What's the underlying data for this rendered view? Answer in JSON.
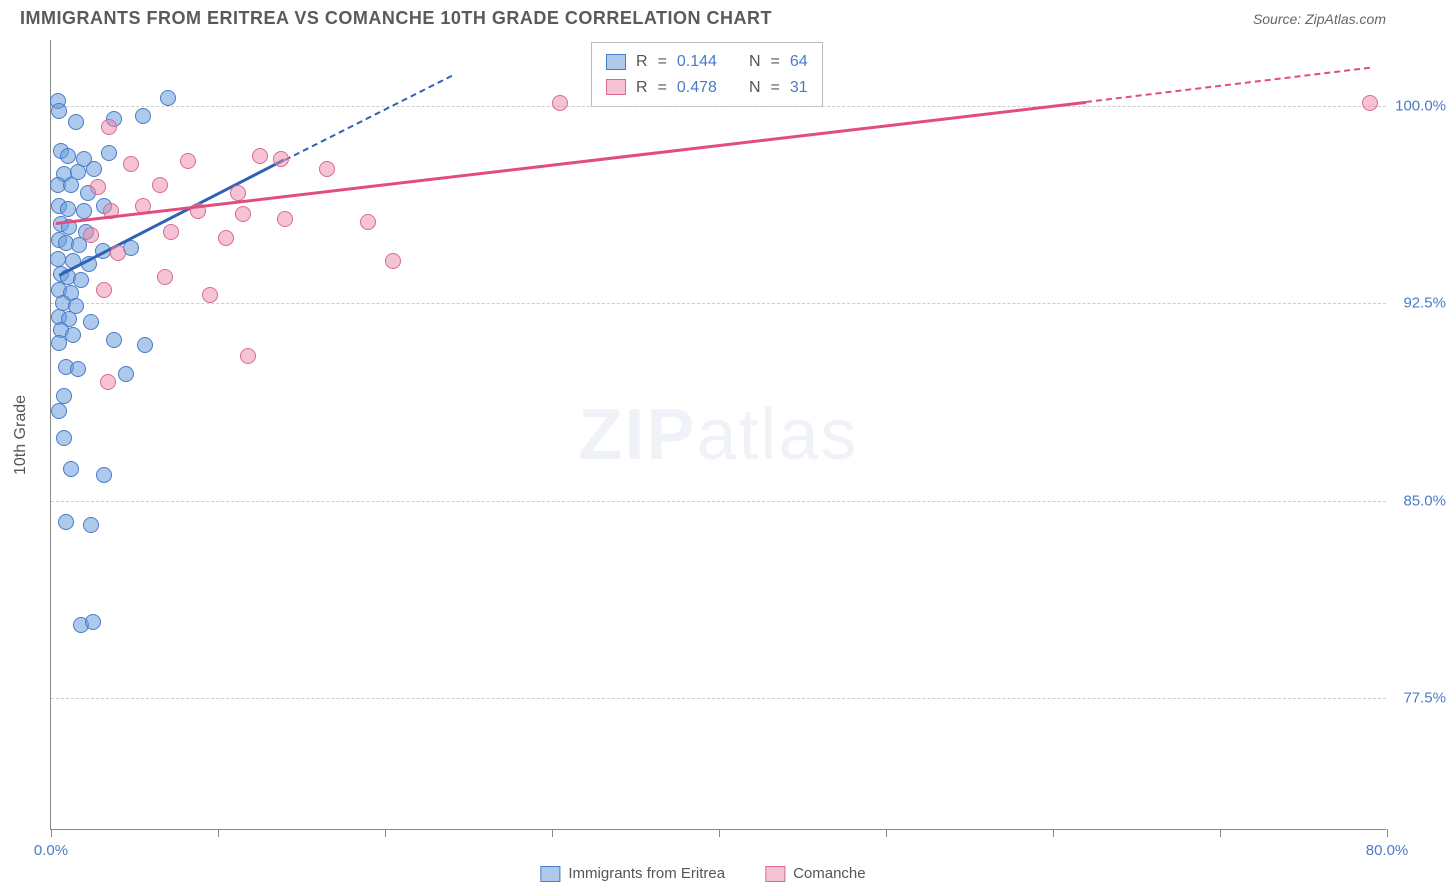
{
  "header": {
    "title": "IMMIGRANTS FROM ERITREA VS COMANCHE 10TH GRADE CORRELATION CHART",
    "source_prefix": "Source: ",
    "source": "ZipAtlas.com"
  },
  "watermark": {
    "zip": "ZIP",
    "atlas": "atlas"
  },
  "chart": {
    "type": "scatter",
    "y_axis_label": "10th Grade",
    "background_color": "#ffffff",
    "grid_color": "#cccccc",
    "axis_color": "#888888",
    "tick_label_color": "#4a7bc8",
    "x_range": [
      0,
      80
    ],
    "y_range": [
      72.5,
      102.5
    ],
    "x_ticks": [
      0,
      10,
      20,
      30,
      40,
      50,
      60,
      70,
      80
    ],
    "x_tick_labels": {
      "first": "0.0%",
      "last": "80.0%"
    },
    "y_ticks": [
      77.5,
      85.0,
      92.5,
      100.0
    ],
    "y_tick_labels": [
      "77.5%",
      "85.0%",
      "92.5%",
      "100.0%"
    ],
    "series": [
      {
        "name": "Immigrants from Eritrea",
        "marker_fill": "rgba(106,159,220,0.55)",
        "marker_stroke": "#4a7bc8",
        "line_color": "#2e63b3",
        "r": 0.144,
        "n": 64,
        "trend_solid": {
          "x1": 0.5,
          "y1": 93.6,
          "x2": 14.0,
          "y2": 98.0
        },
        "trend_dash": {
          "x1": 14.0,
          "y1": 98.0,
          "x2": 24.0,
          "y2": 101.2
        },
        "points": [
          [
            0.4,
            100.2
          ],
          [
            0.5,
            99.8
          ],
          [
            7.0,
            100.3
          ],
          [
            1.5,
            99.4
          ],
          [
            5.5,
            99.6
          ],
          [
            3.8,
            99.5
          ],
          [
            0.6,
            98.3
          ],
          [
            1.0,
            98.1
          ],
          [
            2.0,
            98.0
          ],
          [
            3.5,
            98.2
          ],
          [
            0.8,
            97.4
          ],
          [
            1.6,
            97.5
          ],
          [
            2.6,
            97.6
          ],
          [
            0.4,
            97.0
          ],
          [
            1.2,
            97.0
          ],
          [
            2.2,
            96.7
          ],
          [
            0.5,
            96.2
          ],
          [
            1.0,
            96.1
          ],
          [
            2.0,
            96.0
          ],
          [
            3.2,
            96.2
          ],
          [
            0.6,
            95.5
          ],
          [
            1.1,
            95.4
          ],
          [
            2.1,
            95.2
          ],
          [
            0.5,
            94.9
          ],
          [
            0.9,
            94.8
          ],
          [
            1.7,
            94.7
          ],
          [
            3.1,
            94.5
          ],
          [
            4.8,
            94.6
          ],
          [
            0.4,
            94.2
          ],
          [
            1.3,
            94.1
          ],
          [
            2.3,
            94.0
          ],
          [
            0.6,
            93.6
          ],
          [
            1.0,
            93.5
          ],
          [
            1.8,
            93.4
          ],
          [
            0.5,
            93.0
          ],
          [
            1.2,
            92.9
          ],
          [
            0.7,
            92.5
          ],
          [
            1.5,
            92.4
          ],
          [
            0.5,
            92.0
          ],
          [
            1.1,
            91.9
          ],
          [
            2.4,
            91.8
          ],
          [
            0.6,
            91.5
          ],
          [
            1.3,
            91.3
          ],
          [
            0.5,
            91.0
          ],
          [
            3.8,
            91.1
          ],
          [
            5.6,
            90.9
          ],
          [
            0.9,
            90.1
          ],
          [
            1.6,
            90.0
          ],
          [
            4.5,
            89.8
          ],
          [
            0.8,
            89.0
          ],
          [
            0.5,
            88.4
          ],
          [
            0.8,
            87.4
          ],
          [
            1.2,
            86.2
          ],
          [
            3.2,
            86.0
          ],
          [
            0.9,
            84.2
          ],
          [
            2.4,
            84.1
          ],
          [
            1.8,
            80.3
          ],
          [
            2.5,
            80.4
          ]
        ]
      },
      {
        "name": "Comanche",
        "marker_fill": "rgba(236,135,168,0.5)",
        "marker_stroke": "#d86a94",
        "line_color": "#e34d7e",
        "r": 0.478,
        "n": 31,
        "trend_solid": {
          "x1": 0.3,
          "y1": 95.6,
          "x2": 62.0,
          "y2": 100.2
        },
        "trend_dash": {
          "x1": 62.0,
          "y1": 100.2,
          "x2": 79.0,
          "y2": 101.5
        },
        "points": [
          [
            79.0,
            100.1
          ],
          [
            30.5,
            100.1
          ],
          [
            3.5,
            99.2
          ],
          [
            4.8,
            97.8
          ],
          [
            8.2,
            97.9
          ],
          [
            12.5,
            98.1
          ],
          [
            13.8,
            98.0
          ],
          [
            16.5,
            97.6
          ],
          [
            2.8,
            96.9
          ],
          [
            6.5,
            97.0
          ],
          [
            11.2,
            96.7
          ],
          [
            3.6,
            96.0
          ],
          [
            5.5,
            96.2
          ],
          [
            8.8,
            96.0
          ],
          [
            11.5,
            95.9
          ],
          [
            14.0,
            95.7
          ],
          [
            19.0,
            95.6
          ],
          [
            2.4,
            95.1
          ],
          [
            7.2,
            95.2
          ],
          [
            10.5,
            95.0
          ],
          [
            4.0,
            94.4
          ],
          [
            20.5,
            94.1
          ],
          [
            6.8,
            93.5
          ],
          [
            3.2,
            93.0
          ],
          [
            9.5,
            92.8
          ],
          [
            11.8,
            90.5
          ],
          [
            3.4,
            89.5
          ]
        ]
      }
    ],
    "legend": {
      "stats_rows": [
        {
          "swatch_fill": "rgba(106,159,220,0.55)",
          "swatch_stroke": "#4a7bc8",
          "r": "0.144",
          "n": "64"
        },
        {
          "swatch_fill": "rgba(236,135,168,0.5)",
          "swatch_stroke": "#d86a94",
          "r": "0.478",
          "n": "31"
        }
      ],
      "label_R": "R",
      "label_N": "N",
      "eq": "="
    },
    "bottom_legend": [
      {
        "swatch_fill": "rgba(106,159,220,0.55)",
        "swatch_stroke": "#4a7bc8",
        "label": "Immigrants from Eritrea"
      },
      {
        "swatch_fill": "rgba(236,135,168,0.5)",
        "swatch_stroke": "#d86a94",
        "label": "Comanche"
      }
    ]
  }
}
